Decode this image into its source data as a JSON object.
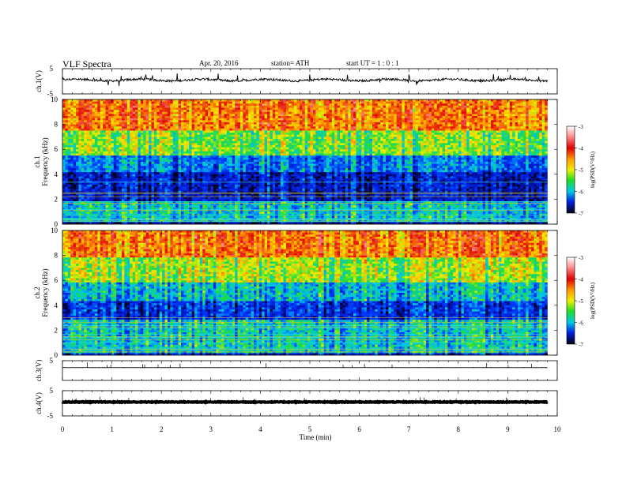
{
  "header": {
    "title": "VLF Spectra",
    "date": "Apr. 20, 2016",
    "station": "station= ATH",
    "start": "start  UT =   1 : 0  : 1"
  },
  "chart_data": {
    "type": "multi-panel waveform + spectrogram",
    "x_axis": {
      "label": "Time  (min)",
      "range": [
        0,
        10
      ],
      "ticks": [
        "0",
        "1",
        "2",
        "3",
        "4",
        "5",
        "6",
        "7",
        "8",
        "9",
        "10"
      ],
      "data_end": 9.8
    },
    "panels": [
      {
        "id": "ch1-wave",
        "type": "line",
        "ylabel": "ch.1(V)",
        "ylim": [
          -5,
          5
        ],
        "yticks": [
          "5",
          "-5"
        ],
        "baseline": 0.5,
        "noise": "moderate"
      },
      {
        "id": "ch1-spec",
        "type": "heatmap",
        "ylabel_channel": "ch.1",
        "ylabel": "Frequency  (kHz)",
        "ylim": [
          0,
          10
        ],
        "yticks": [
          "0",
          "2",
          "4",
          "6",
          "8",
          "10"
        ],
        "colorbar": {
          "label": "log(PSD(V²/Hz)",
          "ticks": [
            "-3",
            "-4",
            "-5",
            "-6",
            "-7"
          ],
          "range": [
            -7,
            -3
          ]
        },
        "bands_khz": [
          {
            "from": 0.0,
            "to": 0.15,
            "level": -6.6
          },
          {
            "from": 0.15,
            "to": 1.8,
            "level": -5.4
          },
          {
            "from": 1.8,
            "to": 4.2,
            "level": -6.4
          },
          {
            "from": 4.2,
            "to": 5.5,
            "level": -5.8
          },
          {
            "from": 5.5,
            "to": 7.5,
            "level": -4.8
          },
          {
            "from": 7.5,
            "to": 10.0,
            "level": -3.9
          }
        ]
      },
      {
        "id": "ch2-spec",
        "type": "heatmap",
        "ylabel_channel": "ch.2",
        "ylabel": "Frequency  (kHz)",
        "ylim": [
          0,
          10
        ],
        "yticks": [
          "0",
          "2",
          "4",
          "6",
          "8",
          "10"
        ],
        "colorbar": {
          "label": "log(PSD(V²/Hz)",
          "ticks": [
            "-3",
            "-4",
            "-5",
            "-6",
            "-7"
          ],
          "range": [
            -7,
            -3
          ]
        },
        "bands_khz": [
          {
            "from": 0.0,
            "to": 0.2,
            "level": -6.3
          },
          {
            "from": 0.2,
            "to": 2.9,
            "level": -5.4
          },
          {
            "from": 2.9,
            "to": 4.3,
            "level": -6.2
          },
          {
            "from": 4.3,
            "to": 5.8,
            "level": -5.5
          },
          {
            "from": 5.8,
            "to": 7.8,
            "level": -4.7
          },
          {
            "from": 7.8,
            "to": 10.0,
            "level": -3.9
          }
        ]
      },
      {
        "id": "ch3-wave",
        "type": "line",
        "ylabel": "ch.3(V)",
        "ylim": [
          -5,
          5
        ],
        "yticks": [
          "5"
        ],
        "baseline": 1.5,
        "noise": "flat"
      },
      {
        "id": "ch4-wave",
        "type": "line",
        "ylabel": "ch.4(V)",
        "ylim": [
          -5,
          5
        ],
        "yticks": [
          "5",
          "-5"
        ],
        "baseline": 0.5,
        "noise": "thick"
      }
    ]
  }
}
